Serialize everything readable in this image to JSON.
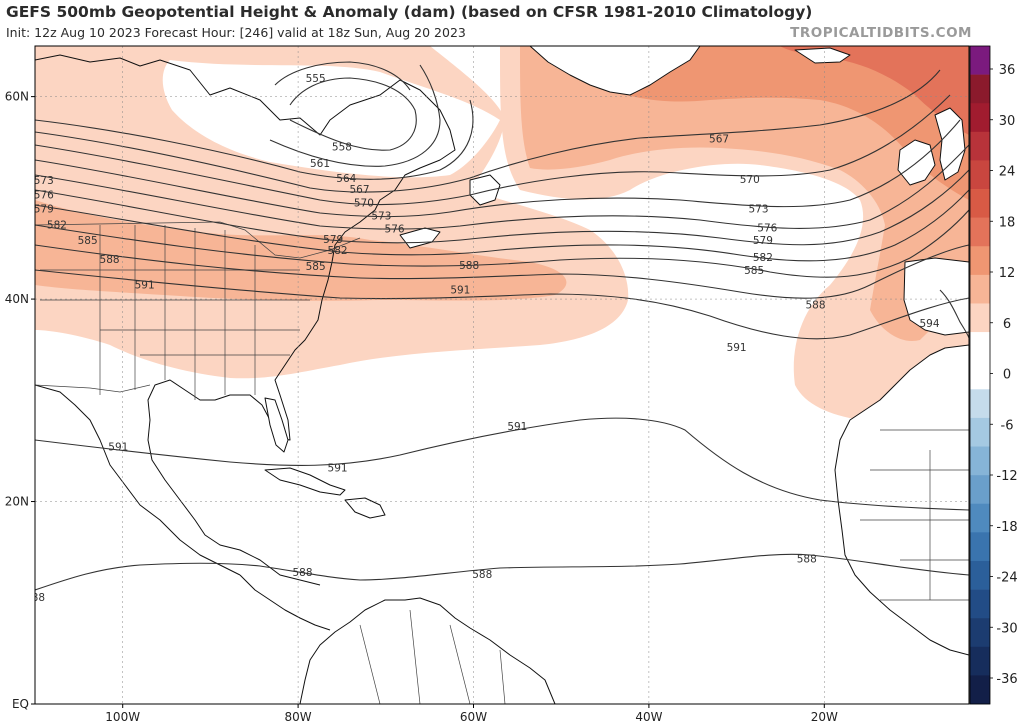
{
  "header": {
    "title": "GEFS 500mb Geopotential Height & Anomaly (dam) (based on CFSR 1981-2010 Climatology)",
    "subtitle": "Init: 12z Aug 10 2023   Forecast Hour: [246]   valid at 18z Sun, Aug 20 2023",
    "site": "TROPICALTIDBITS.COM"
  },
  "map": {
    "lon_range": [
      -110,
      -3.5
    ],
    "lat_range": [
      0,
      65
    ],
    "lon_ticks": [
      {
        "lon": -100,
        "label": "100W"
      },
      {
        "lon": -80,
        "label": "80W"
      },
      {
        "lon": -60,
        "label": "60W"
      },
      {
        "lon": -40,
        "label": "40W"
      },
      {
        "lon": -20,
        "label": "20W"
      }
    ],
    "lat_ticks": [
      {
        "lat": 60,
        "label": "60N"
      },
      {
        "lat": 40,
        "label": "40N"
      },
      {
        "lat": 20,
        "label": "20N"
      },
      {
        "lat": 0,
        "label": "EQ"
      }
    ],
    "colors": {
      "anom_pos_1": "#fcd5c2",
      "anom_pos_2": "#f7b596",
      "anom_pos_3": "#ef9672",
      "anom_pos_4": "#e3735a",
      "contour": "#333333",
      "land": "#ffffff",
      "coast": "#111111"
    },
    "contour_labels": [
      {
        "text": "555",
        "lon": -78.0,
        "lat": 61.8
      },
      {
        "text": "558",
        "lon": -75.0,
        "lat": 55.0
      },
      {
        "text": "561",
        "lon": -77.5,
        "lat": 53.4
      },
      {
        "text": "564",
        "lon": -74.5,
        "lat": 51.9
      },
      {
        "text": "567",
        "lon": -73.0,
        "lat": 50.8
      },
      {
        "text": "570",
        "lon": -72.5,
        "lat": 49.5
      },
      {
        "text": "573",
        "lon": -70.5,
        "lat": 48.2
      },
      {
        "text": "576",
        "lon": -69.0,
        "lat": 46.9
      },
      {
        "text": "579",
        "lon": -76.0,
        "lat": 45.9
      },
      {
        "text": "582",
        "lon": -75.5,
        "lat": 44.8
      },
      {
        "text": "585",
        "lon": -78.0,
        "lat": 43.2
      },
      {
        "text": "588",
        "lon": -60.5,
        "lat": 43.3
      },
      {
        "text": "591",
        "lon": -61.5,
        "lat": 40.9
      },
      {
        "text": "567",
        "lon": -112.0,
        "lat": 55.0
      },
      {
        "text": "570",
        "lon": -112.0,
        "lat": 53.3
      },
      {
        "text": "573",
        "lon": -109.0,
        "lat": 51.7
      },
      {
        "text": "576",
        "lon": -109.0,
        "lat": 50.3
      },
      {
        "text": "579",
        "lon": -109.0,
        "lat": 48.9
      },
      {
        "text": "582",
        "lon": -107.5,
        "lat": 47.3
      },
      {
        "text": "585",
        "lon": -104.0,
        "lat": 45.8
      },
      {
        "text": "588",
        "lon": -101.5,
        "lat": 43.9
      },
      {
        "text": "591",
        "lon": -97.5,
        "lat": 41.4
      },
      {
        "text": "567",
        "lon": -32.0,
        "lat": 55.8
      },
      {
        "text": "570",
        "lon": -28.5,
        "lat": 51.8
      },
      {
        "text": "573",
        "lon": -27.5,
        "lat": 48.9
      },
      {
        "text": "576",
        "lon": -26.5,
        "lat": 47.0
      },
      {
        "text": "579",
        "lon": -27.0,
        "lat": 45.8
      },
      {
        "text": "582",
        "lon": -27.0,
        "lat": 44.1
      },
      {
        "text": "585",
        "lon": -28.0,
        "lat": 42.8
      },
      {
        "text": "588",
        "lon": -21.0,
        "lat": 39.4
      },
      {
        "text": "591",
        "lon": -30.0,
        "lat": 35.2
      },
      {
        "text": "594",
        "lon": -8.0,
        "lat": 37.6
      },
      {
        "text": "591",
        "lon": -100.5,
        "lat": 25.4
      },
      {
        "text": "591",
        "lon": -75.5,
        "lat": 23.3
      },
      {
        "text": "591",
        "lon": -55.0,
        "lat": 27.4
      },
      {
        "text": "588",
        "lon": -79.5,
        "lat": 13.0
      },
      {
        "text": "588",
        "lon": -59.0,
        "lat": 12.8
      },
      {
        "text": "588",
        "lon": -22.0,
        "lat": 14.3
      },
      {
        "text": "588",
        "lon": -110.0,
        "lat": 10.5
      }
    ]
  },
  "colorbar": {
    "ticks": [
      "36",
      "30",
      "24",
      "18",
      "12",
      "6",
      "0",
      "-6",
      "-12",
      "-18",
      "-24",
      "-30",
      "-36"
    ],
    "colors": [
      "#7b1a7e",
      "#8b1a2c",
      "#a11c2f",
      "#b8333a",
      "#c9463f",
      "#d85a45",
      "#e3735a",
      "#ef9672",
      "#f7b596",
      "#fcd5c2",
      "#ffffff",
      "#ffffff",
      "#c5dcec",
      "#a5c9e2",
      "#86b4d7",
      "#6a9fcb",
      "#4f8abe",
      "#3a74ae",
      "#2b5f9a",
      "#224c86",
      "#1c3c70",
      "#162d5c",
      "#121f48"
    ]
  }
}
